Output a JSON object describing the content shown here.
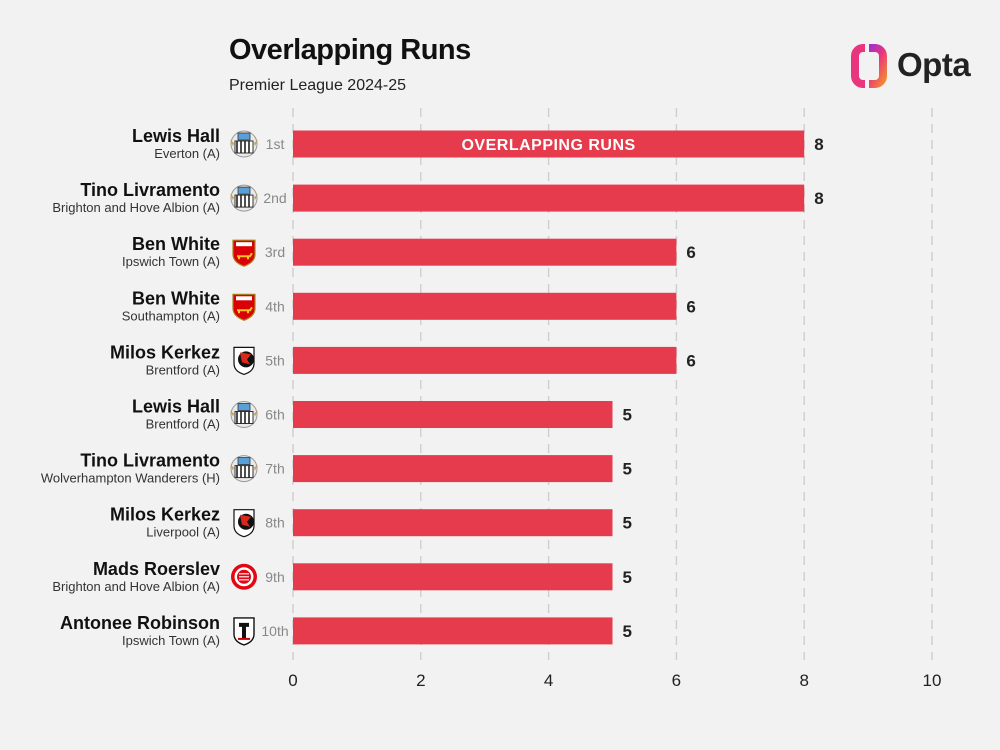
{
  "header": {
    "title": "Overlapping Runs",
    "subtitle": "Premier League 2024-25"
  },
  "logo": {
    "text": "Opta",
    "colors": [
      "#e8357d",
      "#f7a51b",
      "#7b2ff7"
    ]
  },
  "colors": {
    "bar": "#e63b4c",
    "grid": "#d0d0d0",
    "background": "#f2f2f2"
  },
  "chart_data": {
    "type": "bar",
    "orientation": "horizontal",
    "bar_label": "OVERLAPPING RUNS",
    "xlim": [
      0,
      10
    ],
    "xticks": [
      0,
      2,
      4,
      6,
      8,
      10
    ],
    "grid": "vertical dashed",
    "rows": [
      {
        "player": "Lewis Hall",
        "opponent": "Everton (A)",
        "rank": "1st",
        "club_icon": "newcastle-crest-icon",
        "value": 8
      },
      {
        "player": "Tino Livramento",
        "opponent": "Brighton and Hove Albion (A)",
        "rank": "2nd",
        "club_icon": "newcastle-crest-icon",
        "value": 8
      },
      {
        "player": "Ben White",
        "opponent": "Ipswich Town (A)",
        "rank": "3rd",
        "club_icon": "arsenal-crest-icon",
        "value": 6
      },
      {
        "player": "Ben White",
        "opponent": "Southampton (A)",
        "rank": "4th",
        "club_icon": "arsenal-crest-icon",
        "value": 6
      },
      {
        "player": "Milos Kerkez",
        "opponent": "Brentford (A)",
        "rank": "5th",
        "club_icon": "bournemouth-crest-icon",
        "value": 6
      },
      {
        "player": "Lewis Hall",
        "opponent": "Brentford (A)",
        "rank": "6th",
        "club_icon": "newcastle-crest-icon",
        "value": 5
      },
      {
        "player": "Tino Livramento",
        "opponent": "Wolverhampton Wanderers (H)",
        "rank": "7th",
        "club_icon": "newcastle-crest-icon",
        "value": 5
      },
      {
        "player": "Milos Kerkez",
        "opponent": "Liverpool (A)",
        "rank": "8th",
        "club_icon": "bournemouth-crest-icon",
        "value": 5
      },
      {
        "player": "Mads Roerslev",
        "opponent": "Brighton and Hove Albion (A)",
        "rank": "9th",
        "club_icon": "brentford-crest-icon",
        "value": 5
      },
      {
        "player": "Antonee Robinson",
        "opponent": "Ipswich Town (A)",
        "rank": "10th",
        "club_icon": "fulham-crest-icon",
        "value": 5
      }
    ]
  }
}
